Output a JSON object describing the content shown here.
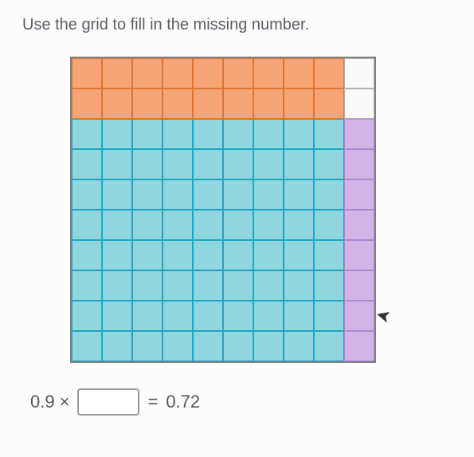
{
  "instruction": "Use the grid to fill in the missing number.",
  "equation": {
    "left_factor": "0.9",
    "times_symbol": "×",
    "equals_symbol": "=",
    "result": "0.72"
  },
  "grid": {
    "rows": 10,
    "cols": 10,
    "cell_size": 38,
    "colors": {
      "overlap": {
        "fill": "#8fd6dd",
        "border": "#1fa6c4"
      },
      "orange_only": {
        "fill": "#f5a576",
        "border": "#e0762f"
      },
      "purple_only": {
        "fill": "#d4b3e7",
        "border": "#b085cf"
      },
      "empty": {
        "fill": "#fafafa",
        "border": "#b0b0b0"
      }
    },
    "outer_border_color": "#808080",
    "orange_cols": 9,
    "purple_rows": 8,
    "comment": "10x10 hundredths grid. Orange shading spans leftmost 9 columns (0.9). Purple shading spans bottom 8 rows (0.8). Their 9x8 overlap at bottom-left (cyan) is the product 0.72."
  },
  "cursor": {
    "glyph": "➤",
    "row": 8.2,
    "col": 10.1
  }
}
